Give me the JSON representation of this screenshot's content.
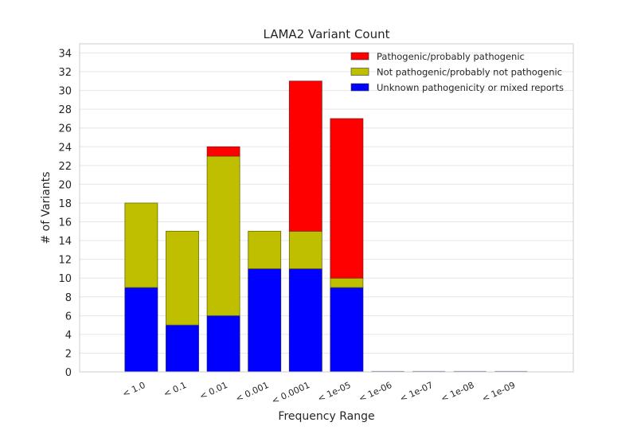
{
  "chart_data": {
    "type": "bar",
    "stacked": true,
    "title": "LAMA2 Variant Count",
    "xlabel": "Frequency Range",
    "ylabel": "# of Variants",
    "categories": [
      "< 1.0",
      "< 0.1",
      "< 0.01",
      "< 0.001",
      "< 0.0001",
      "< 1e-05",
      "< 1e-06",
      "< 1e-07",
      "< 1e-08",
      "< 1e-09"
    ],
    "ylim": [
      0,
      35
    ],
    "yticks": [
      0,
      2,
      4,
      6,
      8,
      10,
      12,
      14,
      16,
      18,
      20,
      22,
      24,
      26,
      28,
      30,
      32,
      34
    ],
    "grid": true,
    "legend_position": "top-right",
    "series": [
      {
        "name": "Unknown pathogenicity or mixed reports",
        "color": "#0000ff",
        "values": [
          9,
          5,
          6,
          11,
          11,
          9,
          0,
          0,
          0,
          0
        ]
      },
      {
        "name": "Not pathogenic/probably not pathogenic",
        "color": "#bfbf00",
        "values": [
          9,
          10,
          17,
          4,
          4,
          1,
          0,
          0,
          0,
          0
        ]
      },
      {
        "name": "Pathogenic/probably pathogenic",
        "color": "#ff0000",
        "values": [
          0,
          0,
          1,
          0,
          16,
          17,
          0,
          0,
          0,
          0
        ]
      }
    ],
    "legend_order": [
      "Pathogenic/probably pathogenic",
      "Not pathogenic/probably not pathogenic",
      "Unknown pathogenicity or mixed reports"
    ]
  }
}
